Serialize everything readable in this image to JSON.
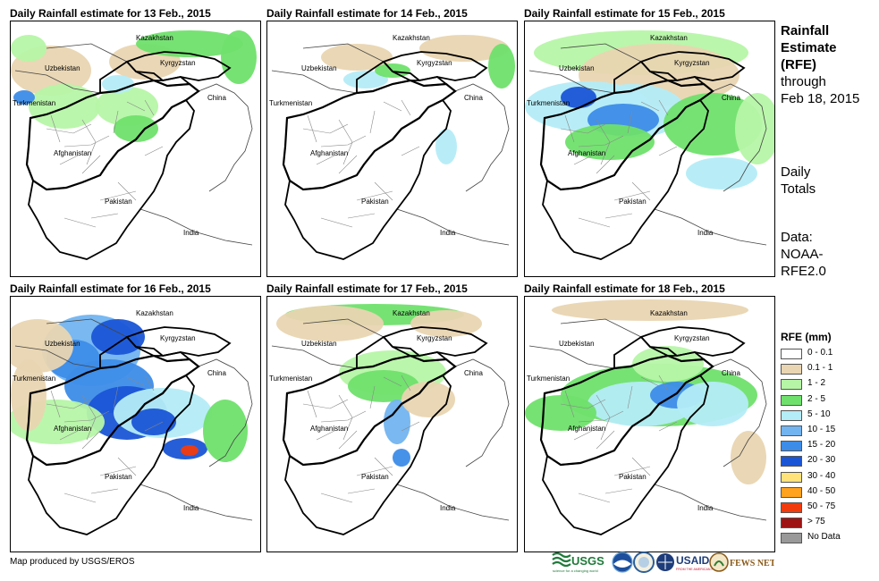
{
  "panels": [
    {
      "title": "Daily Rainfall estimate for 13 Feb., 2015"
    },
    {
      "title": "Daily Rainfall estimate for 14 Feb., 2015"
    },
    {
      "title": "Daily Rainfall estimate for 15 Feb., 2015"
    },
    {
      "title": "Daily Rainfall estimate for 16 Feb., 2015"
    },
    {
      "title": "Daily Rainfall estimate for 17 Feb., 2015"
    },
    {
      "title": "Daily Rainfall estimate for 18 Feb., 2015"
    }
  ],
  "map_labels": {
    "kazakhstan": "Kazakhstan",
    "kyrgyzstan": "Kyrgyzstan",
    "uzbekistan": "Uzbekistan",
    "turkmenistan": "Turkmenistan",
    "afghanistan": "Afghanistan",
    "pakistan": "Pakistan",
    "china": "China",
    "india": "India"
  },
  "sidebar": {
    "title_lines": [
      "Rainfall",
      "Estimate",
      "(RFE)"
    ],
    "through": "through",
    "date": "Feb 18, 2015",
    "totals_lines": [
      "Daily",
      "Totals"
    ],
    "data_lines": [
      "Data:",
      "NOAA-",
      "RFE2.0"
    ]
  },
  "legend": {
    "title": "RFE (mm)",
    "items": [
      {
        "label": "0 - 0.1",
        "color": "#ffffff"
      },
      {
        "label": "0.1 - 1",
        "color": "#e9d5b1"
      },
      {
        "label": "1 - 2",
        "color": "#b6f5a6"
      },
      {
        "label": "2 - 5",
        "color": "#6fe06c"
      },
      {
        "label": "5 - 10",
        "color": "#b4ecf7"
      },
      {
        "label": "10 - 15",
        "color": "#72b4f0"
      },
      {
        "label": "15 - 20",
        "color": "#3d8ce8"
      },
      {
        "label": "20 - 30",
        "color": "#1a55d6"
      },
      {
        "label": "30 - 40",
        "color": "#ffe27a"
      },
      {
        "label": "40 - 50",
        "color": "#ffa21e"
      },
      {
        "label": "50 - 75",
        "color": "#f23b0c"
      },
      {
        "label": "> 75",
        "color": "#9e1414"
      },
      {
        "label": "No Data",
        "color": "#999999"
      }
    ]
  },
  "credit": "Map produced by USGS/EROS",
  "logos": {
    "usgs": "USGS",
    "usgs_tagline": "science for a changing world",
    "usaid": "USAID",
    "usaid_tagline": "FROM THE AMERICAN PEOPLE",
    "fewsnet": "FEWS NET"
  }
}
